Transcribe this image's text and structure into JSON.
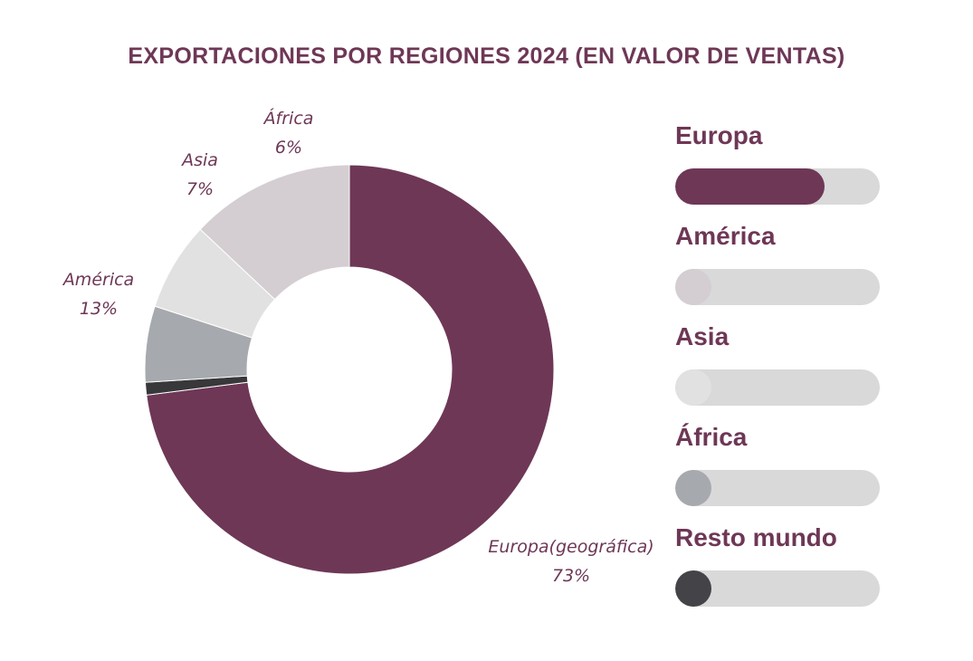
{
  "chart_data": {
    "type": "pie",
    "title": "EXPORTACIONES POR REGIONES 2024 (EN VALOR DE VENTAS)",
    "slices": [
      {
        "label": "Europa(geográfica)",
        "value": 73,
        "display": "73%",
        "color": "#6e3756"
      },
      {
        "label": "Resto mundo",
        "value": 1,
        "display": "",
        "color": "#38383a"
      },
      {
        "label": "África",
        "value": 6,
        "display": "6%",
        "color": "#a6a9ad"
      },
      {
        "label": "Asia",
        "value": 7,
        "display": "7%",
        "color": "#e2e1e2"
      },
      {
        "label": "América",
        "value": 13,
        "display": "13%",
        "color": "#d4ced2"
      }
    ]
  },
  "legend": {
    "items": [
      {
        "name": "Europa",
        "fraction": 0.73,
        "color": "#6e3756"
      },
      {
        "name": "América",
        "fraction": 0.13,
        "color": "#d4ced2"
      },
      {
        "name": "Asia",
        "fraction": 0.07,
        "color": "#e2e1e2"
      },
      {
        "name": "África",
        "fraction": 0.06,
        "color": "#a6a9ad"
      },
      {
        "name": "Resto mundo",
        "fraction": 0.01,
        "color": "#444448"
      }
    ],
    "track_color": "#d9d9d9"
  }
}
